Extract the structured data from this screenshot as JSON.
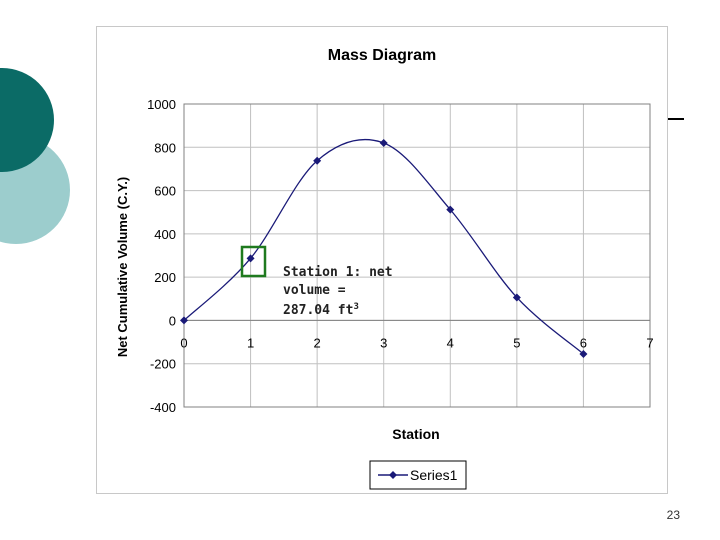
{
  "slide": {
    "page_number": "23"
  },
  "colors": {
    "circle_dark": "#0b6b66",
    "circle_light": "#9ccdcd",
    "series": "#1a1a78",
    "grid": "#c0c0c0",
    "highlight_box": "#1f7a1f"
  },
  "chart_data": {
    "type": "line",
    "title": "Mass Diagram",
    "xlabel": "Station",
    "ylabel": "Net Cumulative Volume (C.Y.)",
    "xlim": [
      0,
      7
    ],
    "ylim": [
      -400,
      1000
    ],
    "x_ticks": [
      "0",
      "1",
      "2",
      "3",
      "4",
      "5",
      "6",
      "7"
    ],
    "y_ticks": [
      "-400",
      "-200",
      "0",
      "200",
      "400",
      "600",
      "800",
      "1000"
    ],
    "grid": true,
    "legend_position": "bottom",
    "series": [
      {
        "name": "Series1",
        "x": [
          0,
          1,
          2,
          3,
          4,
          5,
          6
        ],
        "y": [
          0,
          287,
          738,
          820,
          512,
          106,
          -155
        ]
      }
    ],
    "annotation": {
      "line1": "Station 1:  net",
      "line2": "volume =",
      "line3": "287.04 ft",
      "superscript": "3"
    }
  }
}
